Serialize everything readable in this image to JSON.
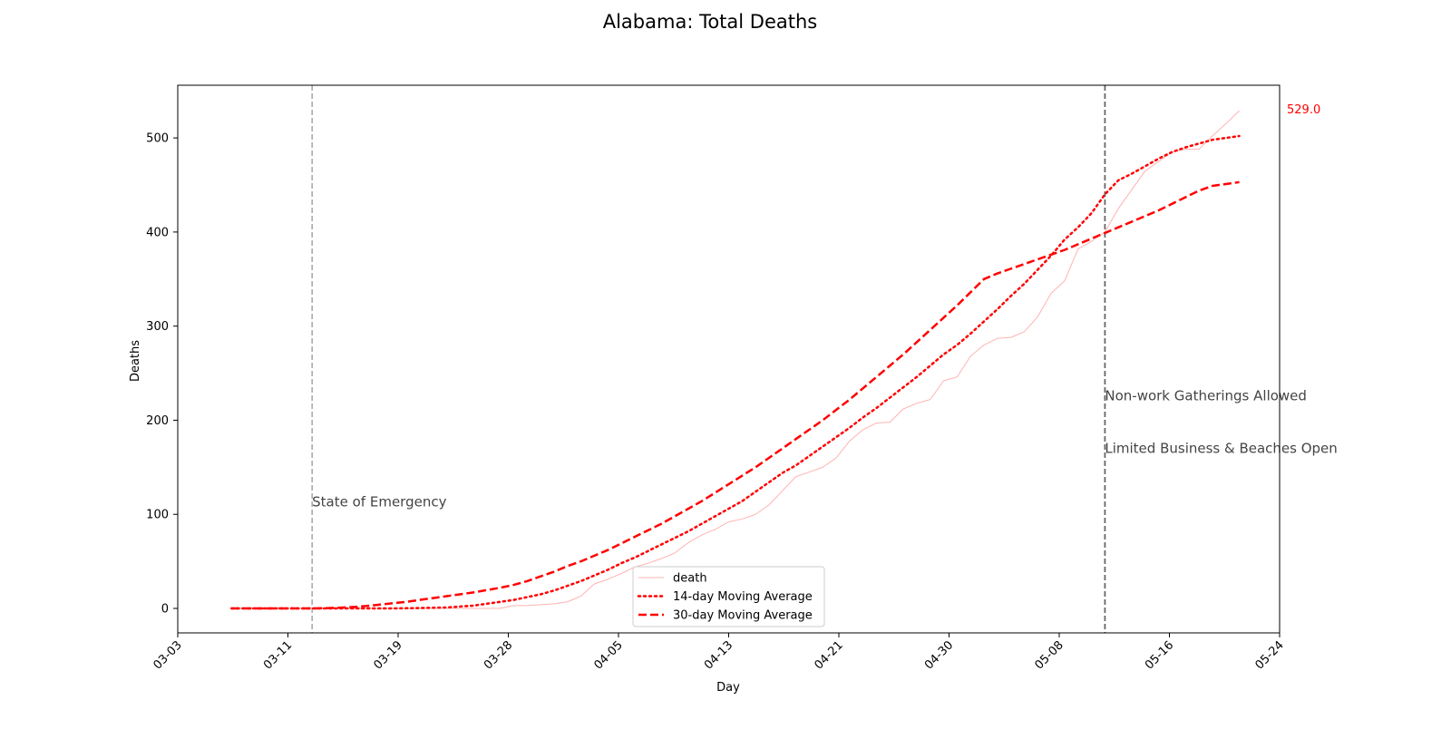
{
  "chart_data": {
    "type": "line",
    "title": "Alabama: Total Deaths",
    "xlabel": "Day",
    "ylabel": "Deaths",
    "ylim": [
      -26,
      556
    ],
    "x_tick_labels": [
      "03-03",
      "03-11",
      "03-19",
      "03-28",
      "04-05",
      "04-13",
      "04-21",
      "04-30",
      "05-08",
      "05-16",
      "05-24"
    ],
    "y_ticks": [
      0,
      100,
      200,
      300,
      400,
      500
    ],
    "grid": false,
    "legend_position": "bottom-center",
    "last_value_label": "529.0",
    "colors": {
      "series": "#ff0000",
      "raw": "#ffb3b3",
      "text": "#444444",
      "vline_light": "#aaaaaa",
      "vline_dark": "#666666",
      "last_value": "#ff0000"
    },
    "x": [
      "03-07",
      "03-08",
      "03-09",
      "03-10",
      "03-11",
      "03-12",
      "03-13",
      "03-14",
      "03-15",
      "03-16",
      "03-17",
      "03-18",
      "03-19",
      "03-20",
      "03-21",
      "03-22",
      "03-23",
      "03-24",
      "03-25",
      "03-26",
      "03-27",
      "03-28",
      "03-29",
      "03-30",
      "03-31",
      "04-01",
      "04-02",
      "04-03",
      "04-04",
      "04-05",
      "04-06",
      "04-07",
      "04-08",
      "04-09",
      "04-10",
      "04-11",
      "04-12",
      "04-13",
      "04-14",
      "04-15",
      "04-16",
      "04-17",
      "04-18",
      "04-19",
      "04-20",
      "04-21",
      "04-22",
      "04-23",
      "04-24",
      "04-25",
      "04-26",
      "04-27",
      "04-28",
      "04-29",
      "04-30",
      "05-01",
      "05-02",
      "05-03",
      "05-04",
      "05-05",
      "05-06",
      "05-07",
      "05-08",
      "05-09",
      "05-10",
      "05-11",
      "05-12",
      "05-13",
      "05-14",
      "05-15",
      "05-16",
      "05-17",
      "05-18",
      "05-19",
      "05-20",
      "05-21"
    ],
    "series": [
      {
        "name": "death",
        "style": "solid-thin",
        "values": [
          0,
          0,
          0,
          0,
          0,
          0,
          0,
          0,
          0,
          0,
          0,
          0,
          0,
          0,
          0,
          0,
          0,
          0,
          0,
          0,
          0,
          3,
          3,
          4,
          5,
          7,
          13,
          26,
          31,
          37,
          44,
          48,
          53,
          59,
          70,
          78,
          84,
          92,
          95,
          100,
          110,
          125,
          140,
          145,
          150,
          160,
          178,
          190,
          197,
          198,
          212,
          218,
          222,
          242,
          246,
          268,
          280,
          287,
          288,
          294,
          310,
          335,
          348,
          382,
          390,
          400,
          425,
          445,
          465,
          475,
          485,
          488,
          488,
          502,
          515,
          529
        ]
      },
      {
        "name": "14-day Moving Average",
        "style": "dotted",
        "values": [
          0,
          0,
          0,
          0,
          0,
          0,
          0,
          0,
          0,
          0,
          0,
          0,
          0,
          0.2,
          0.4,
          0.7,
          1,
          2,
          3,
          5,
          7,
          9,
          12,
          15,
          19,
          24,
          29,
          35,
          41,
          48,
          54,
          61,
          68,
          75,
          82,
          90,
          98,
          106,
          114,
          124,
          134,
          144,
          152,
          162,
          172,
          182,
          192,
          203,
          213,
          224,
          235,
          246,
          258,
          270,
          280,
          292,
          305,
          318,
          332,
          345,
          360,
          375,
          392,
          405,
          420,
          440,
          455,
          462,
          470,
          478,
          485,
          490,
          494,
          498,
          500,
          502
        ]
      },
      {
        "name": "30-day Moving Average",
        "style": "dashed",
        "values": [
          0,
          0,
          0,
          0,
          0,
          0,
          0,
          0.3,
          0.8,
          1.5,
          2.5,
          4,
          5.5,
          7,
          9,
          11,
          13,
          15,
          17,
          19.5,
          22,
          25,
          29,
          34,
          39,
          45,
          50,
          56,
          62,
          69,
          76,
          83,
          90,
          98,
          106,
          114,
          123,
          132,
          141,
          150,
          160,
          170,
          180,
          190,
          200,
          211,
          222,
          234,
          246,
          258,
          270,
          283,
          296,
          309,
          322,
          336,
          350,
          356,
          361,
          366,
          371,
          376,
          381,
          387,
          393,
          399,
          405,
          411,
          417,
          423,
          430,
          437,
          444,
          449,
          451,
          453
        ]
      }
    ],
    "annotations": [
      {
        "label": "State of Emergency",
        "x": "03-13",
        "text_y": 113,
        "line_style": "light"
      },
      {
        "label": "Non-work Gatherings Allowed",
        "x": "05-11",
        "text_y": 226,
        "line_style": "dark"
      },
      {
        "label": "Limited Business & Beaches Open",
        "x": "05-11",
        "text_y": 170,
        "line_style": "dark"
      }
    ]
  }
}
